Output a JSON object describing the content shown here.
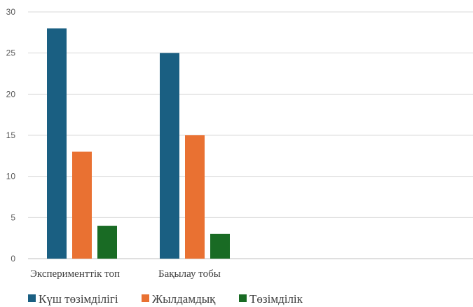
{
  "chart_data": {
    "type": "bar",
    "categories": [
      "Эксперименттік топ",
      "Бақылау тобы"
    ],
    "series": [
      {
        "name": "Күш төзімділігі",
        "values": [
          28,
          25
        ],
        "color": "#1a5f82"
      },
      {
        "name": "Жылдамдық",
        "values": [
          13,
          15
        ],
        "color": "#e97132"
      },
      {
        "name": "Төзімділік",
        "values": [
          4,
          3
        ],
        "color": "#196b24"
      }
    ],
    "ylim": [
      0,
      30
    ],
    "yticks": [
      0,
      5,
      10,
      15,
      20,
      25,
      30
    ],
    "grid": true,
    "legend": "bottom-left"
  }
}
